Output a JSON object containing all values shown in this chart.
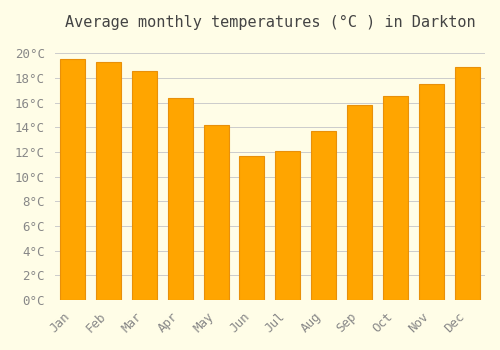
{
  "title": "Average monthly temperatures (°C ) in Darkton",
  "months": [
    "Jan",
    "Feb",
    "Mar",
    "Apr",
    "May",
    "Jun",
    "Jul",
    "Aug",
    "Sep",
    "Oct",
    "Nov",
    "Dec"
  ],
  "values": [
    19.5,
    19.3,
    18.6,
    16.4,
    14.2,
    11.7,
    12.1,
    13.7,
    15.8,
    16.5,
    17.5,
    18.9
  ],
  "bar_color": "#FFA500",
  "bar_edge_color": "#E8900A",
  "background_color": "#FFFDE7",
  "grid_color": "#CCCCCC",
  "ylim": [
    0,
    21
  ],
  "yticks": [
    0,
    2,
    4,
    6,
    8,
    10,
    12,
    14,
    16,
    18,
    20
  ],
  "title_fontsize": 11,
  "tick_fontsize": 9
}
